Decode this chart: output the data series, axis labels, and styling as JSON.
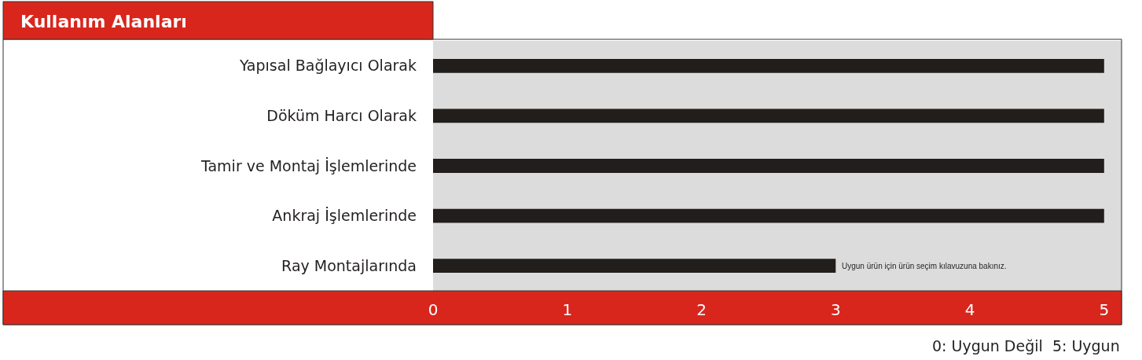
{
  "chart_data": {
    "type": "bar",
    "title": "Kullanım Alanları",
    "orientation": "horizontal",
    "categories": [
      "Yapısal Bağlayıcı Olarak",
      "Döküm Harcı Olarak",
      "Tamir ve Montaj İşlemlerinde",
      "Ankraj İşlemlerinde",
      "Ray Montajlarında"
    ],
    "values": [
      5,
      5,
      5,
      5,
      3
    ],
    "color": "#221e1c",
    "xlim": [
      0,
      5.13
    ],
    "xticks": [
      0,
      1,
      2,
      3,
      4,
      5
    ],
    "grid": false,
    "legend": false,
    "annotations": [
      {
        "text": "Uygun ürün için ürün seçim kılavuzuna bakınız.",
        "x": 3,
        "y": "Ray Montajlarında"
      },
      "0: Uygun Değil  5: Uygun"
    ]
  }
}
